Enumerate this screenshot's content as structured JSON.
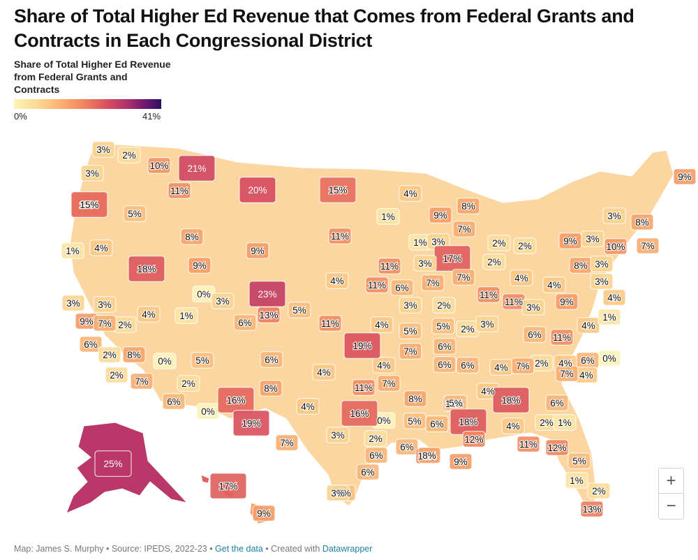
{
  "title": "Share of Total Higher Ed Revenue that Comes from Federal Grants and Contracts in Each Congressional District",
  "legend": {
    "title": "Share of Total Higher Ed Revenue from Federal Grants and Contracts",
    "min_label": "0%",
    "max_label": "41%",
    "min_value": 0,
    "max_value": 41,
    "color_stops": [
      "#fcf4b8",
      "#fcd48f",
      "#f9a86d",
      "#ef7d5e",
      "#d8505f",
      "#b3336b",
      "#731b6f",
      "#2f1061"
    ]
  },
  "map_labels": [
    "3%",
    "2%",
    "10%",
    "21%",
    "20%",
    "15%",
    "4%",
    "9%",
    "3%",
    "11%",
    "1%",
    "9%",
    "8%",
    "15%",
    "5%",
    "8%",
    "11%",
    "7%",
    "3%",
    "8%",
    "1%",
    "4%",
    "9%",
    "1%",
    "3%",
    "17%",
    "2%",
    "2%",
    "9%",
    "3%",
    "10%",
    "7%",
    "18%",
    "9%",
    "11%",
    "3%",
    "2%",
    "8%",
    "3%",
    "4%",
    "7%",
    "0%",
    "3%",
    "23%",
    "4%",
    "11%",
    "6%",
    "7%",
    "3%",
    "11%",
    "4%",
    "4%",
    "9%",
    "3%",
    "11%",
    "3%",
    "1%",
    "13%",
    "5%",
    "3%",
    "2%",
    "3%",
    "9%",
    "4%",
    "2%",
    "7%",
    "2%",
    "6%",
    "11%",
    "4%",
    "5%",
    "3%",
    "6%",
    "4%",
    "5%",
    "11%",
    "1%",
    "6%",
    "7%",
    "6%",
    "2%",
    "4%",
    "2%",
    "0%",
    "0%",
    "5%",
    "6%",
    "6%",
    "6%",
    "8%",
    "4%",
    "4%",
    "6%",
    "19%",
    "7%",
    "7%",
    "2%",
    "4%",
    "7%",
    "4%",
    "6%",
    "4%",
    "7%",
    "2%",
    "0%",
    "8%",
    "8%",
    "11%",
    "18%",
    "11%",
    "6%",
    "0%",
    "16%",
    "19%",
    "7%",
    "16%",
    "5%",
    "6%",
    "5%",
    "18%",
    "4%",
    "2%",
    "1%",
    "4%",
    "5%",
    "12%",
    "11%",
    "12%",
    "3%",
    "2%",
    "6%",
    "13%",
    "6%",
    "8%",
    "9%",
    "25%",
    "6%",
    "5%",
    "17%",
    "1%",
    "2%",
    "3%",
    "9%",
    "13%",
    "15%"
  ],
  "footer": {
    "prefix": "Map: James S. Murphy • Source: IPEDS, 2022-23 • ",
    "get_data": "Get the data",
    "sep": " • Created with ",
    "datawrapper": "Datawrapper"
  },
  "zoom": {
    "in": "+",
    "out": "−"
  }
}
